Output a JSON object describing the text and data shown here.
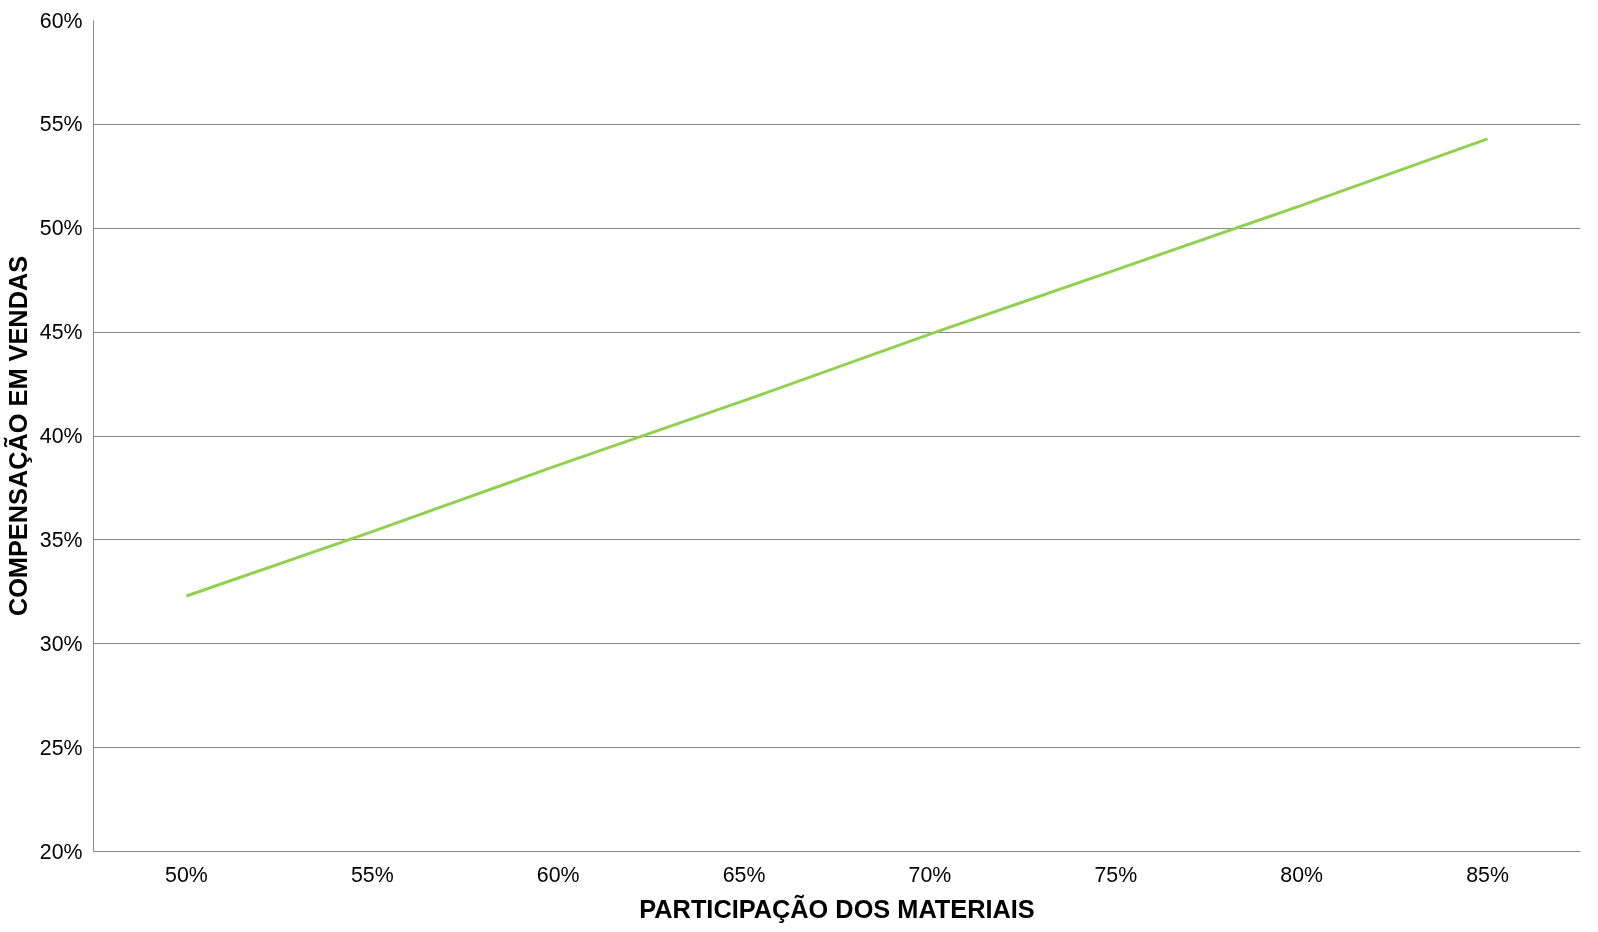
{
  "chart_data": {
    "type": "line",
    "xlabel": "PARTICIPAÇÃO DOS MATERIAIS",
    "ylabel": "COMPENSAÇÃO EM VENDAS",
    "categories": [
      "50%",
      "55%",
      "60%",
      "65%",
      "70%",
      "75%",
      "80%",
      "85%"
    ],
    "series": [
      {
        "color": "#92d050",
        "values": [
          32.3,
          35.4,
          38.6,
          41.7,
          44.9,
          48.0,
          51.1,
          54.3
        ]
      }
    ],
    "ylim": [
      20,
      60
    ],
    "yticks": [
      {
        "value": 20,
        "label": "20%"
      },
      {
        "value": 25,
        "label": "25%"
      },
      {
        "value": 30,
        "label": "30%"
      },
      {
        "value": 35,
        "label": "35%"
      },
      {
        "value": 40,
        "label": "40%"
      },
      {
        "value": 45,
        "label": "45%"
      },
      {
        "value": 50,
        "label": "50%"
      },
      {
        "value": 55,
        "label": "55%"
      },
      {
        "value": 60,
        "label": "60%"
      }
    ],
    "grid": "y"
  }
}
